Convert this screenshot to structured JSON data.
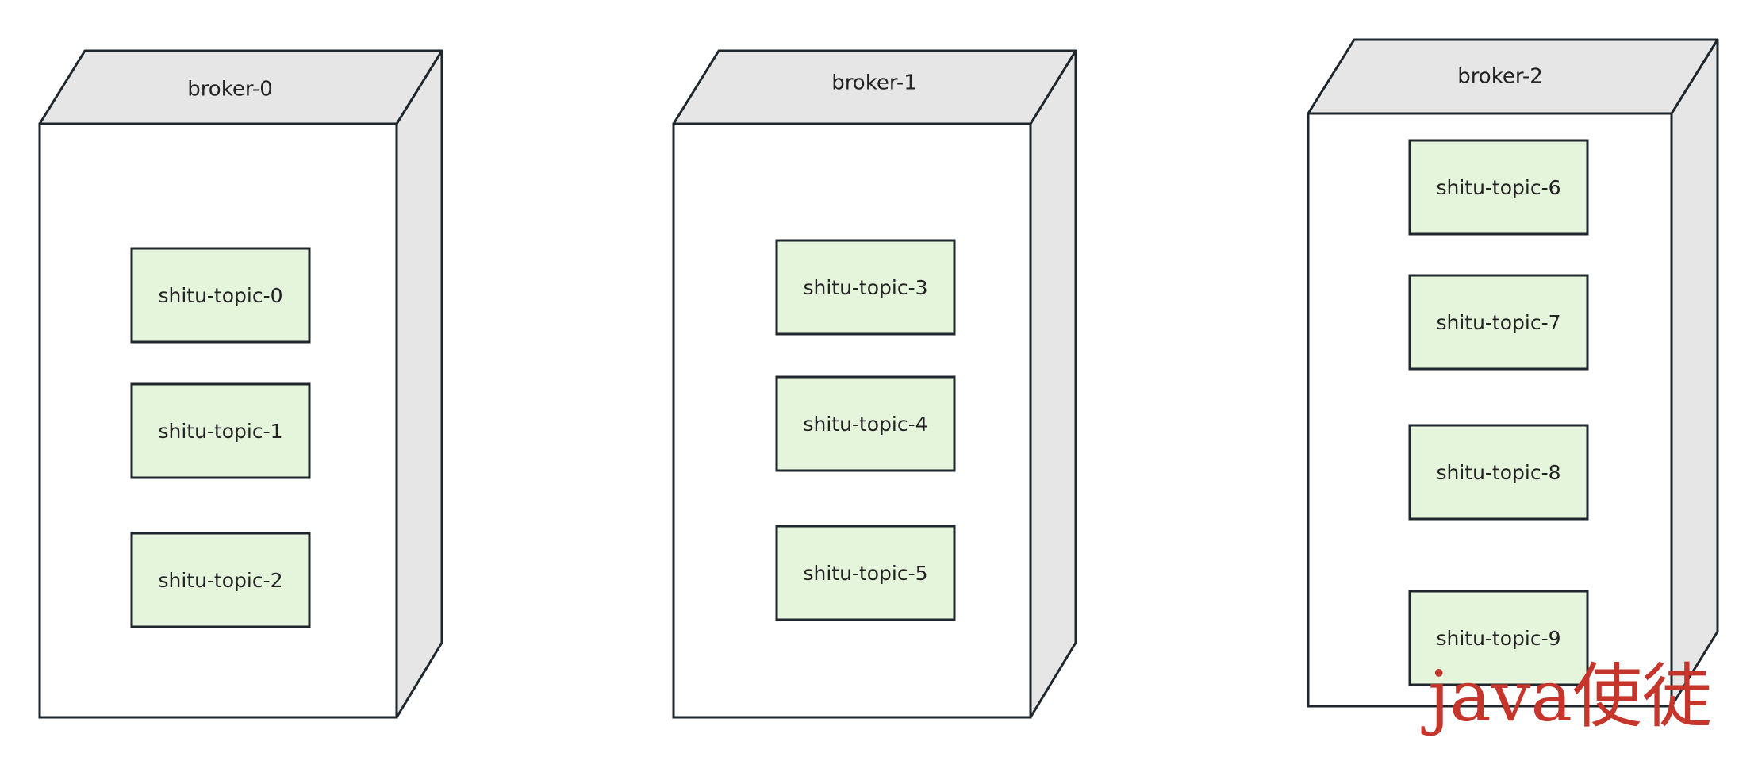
{
  "diagram": {
    "brokers": [
      {
        "name": "broker-0",
        "topics": [
          "shitu-topic-0",
          "shitu-topic-1",
          "shitu-topic-2"
        ]
      },
      {
        "name": "broker-1",
        "topics": [
          "shitu-topic-3",
          "shitu-topic-4",
          "shitu-topic-5"
        ]
      },
      {
        "name": "broker-2",
        "topics": [
          "shitu-topic-6",
          "shitu-topic-7",
          "shitu-topic-8",
          "shitu-topic-9"
        ]
      }
    ],
    "watermark": "java使徒",
    "colors": {
      "outline": "#1f272c",
      "box_face": "#ffffff",
      "box_side": "#e6e6e6",
      "topic_fill": "#e4f5dc",
      "watermark": "#c6352c"
    }
  }
}
